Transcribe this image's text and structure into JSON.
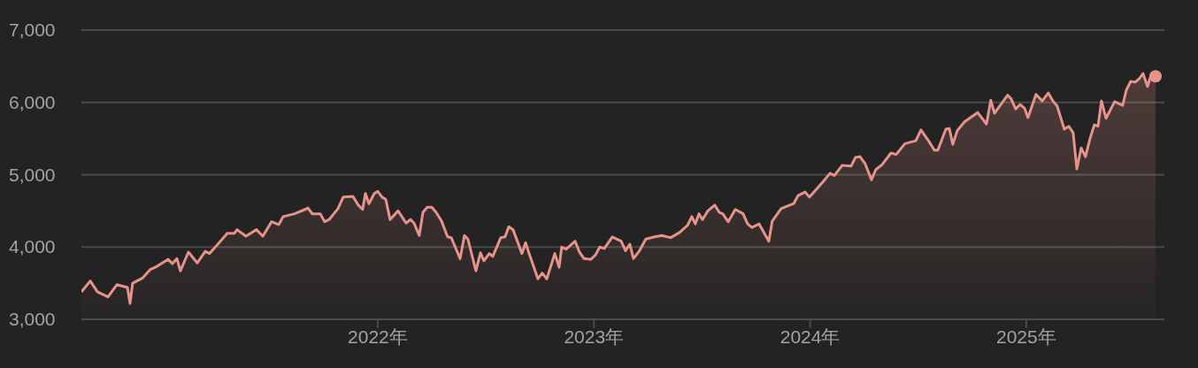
{
  "chart_data": {
    "type": "area",
    "x": [
      2020.629,
      2020.67,
      2020.703,
      2020.752,
      2020.793,
      2020.842,
      2020.854,
      2020.866,
      2020.911,
      2020.948,
      2020.977,
      2021.03,
      2021.05,
      2021.071,
      2021.087,
      2021.124,
      2021.165,
      2021.202,
      2021.222,
      2021.255,
      2021.304,
      2021.337,
      2021.349,
      2021.39,
      2021.439,
      2021.468,
      2021.509,
      2021.542,
      2021.562,
      2021.615,
      2021.664,
      2021.677,
      2021.697,
      2021.734,
      2021.754,
      2021.775,
      2021.816,
      2021.84,
      2021.885,
      2021.91,
      2021.93,
      2021.943,
      2021.959,
      2021.984,
      2022.0,
      2022.02,
      2022.037,
      2022.057,
      2022.094,
      2022.131,
      2022.151,
      2022.168,
      2022.192,
      2022.209,
      2022.229,
      2022.25,
      2022.27,
      2022.295,
      2022.323,
      2022.34,
      2022.381,
      2022.401,
      2022.417,
      2022.454,
      2022.475,
      2022.491,
      2022.516,
      2022.532,
      2022.569,
      2022.589,
      2022.606,
      2022.626,
      2022.667,
      2022.684,
      2022.7,
      2022.741,
      2022.761,
      2022.782,
      2022.819,
      2022.839,
      2022.851,
      2022.872,
      2022.913,
      2022.933,
      2022.954,
      2022.986,
      2023.007,
      2023.027,
      2023.048,
      2023.085,
      2023.126,
      2023.146,
      2023.166,
      2023.183,
      2023.211,
      2023.24,
      2023.281,
      2023.314,
      2023.355,
      2023.396,
      2023.433,
      2023.453,
      2023.469,
      2023.486,
      2023.502,
      2023.527,
      2023.559,
      2023.58,
      2023.596,
      2023.621,
      2023.654,
      2023.69,
      2023.711,
      2023.731,
      2023.764,
      2023.809,
      2023.825,
      2023.866,
      2023.924,
      2023.944,
      2023.977,
      2023.997,
      2024.059,
      2024.092,
      2024.112,
      2024.149,
      2024.19,
      2024.21,
      2024.231,
      2024.255,
      2024.284,
      2024.304,
      2024.333,
      2024.374,
      2024.398,
      2024.439,
      2024.489,
      2024.513,
      2024.55,
      2024.575,
      2024.591,
      2024.628,
      2024.644,
      2024.66,
      2024.681,
      2024.714,
      2024.775,
      2024.816,
      2024.836,
      2024.853,
      2024.877,
      2024.914,
      2024.93,
      2024.951,
      2024.972,
      2024.992,
      2025.008,
      2025.045,
      2025.074,
      2025.102,
      2025.123,
      2025.143,
      2025.176,
      2025.197,
      2025.217,
      2025.234,
      2025.254,
      2025.274,
      2025.295,
      2025.315,
      2025.332,
      2025.348,
      2025.369,
      2025.409,
      2025.446,
      2025.463,
      2025.483,
      2025.504,
      2025.524,
      2025.54,
      2025.561,
      2025.573,
      2025.598
    ],
    "series": [
      {
        "color": "#e8938a",
        "values": [
          3380,
          3530,
          3380,
          3310,
          3480,
          3440,
          3220,
          3500,
          3570,
          3690,
          3730,
          3830,
          3770,
          3840,
          3670,
          3930,
          3780,
          3940,
          3910,
          4020,
          4190,
          4190,
          4240,
          4150,
          4240,
          4150,
          4350,
          4310,
          4420,
          4460,
          4520,
          4540,
          4460,
          4460,
          4350,
          4380,
          4530,
          4690,
          4700,
          4580,
          4520,
          4740,
          4600,
          4740,
          4770,
          4690,
          4660,
          4380,
          4500,
          4330,
          4380,
          4330,
          4160,
          4480,
          4550,
          4550,
          4480,
          4360,
          4140,
          4130,
          3840,
          4160,
          4110,
          3670,
          3920,
          3810,
          3910,
          3870,
          4130,
          4140,
          4280,
          4240,
          3910,
          4060,
          3910,
          3560,
          3640,
          3560,
          3910,
          3720,
          4000,
          3970,
          4080,
          3930,
          3840,
          3830,
          3890,
          4000,
          3980,
          4140,
          4080,
          3950,
          4040,
          3840,
          3950,
          4110,
          4140,
          4160,
          4130,
          4200,
          4300,
          4420,
          4320,
          4460,
          4380,
          4500,
          4580,
          4480,
          4460,
          4350,
          4520,
          4460,
          4320,
          4270,
          4320,
          4080,
          4360,
          4530,
          4600,
          4710,
          4760,
          4690,
          4900,
          5020,
          4990,
          5130,
          5120,
          5240,
          5250,
          5150,
          4930,
          5070,
          5140,
          5300,
          5280,
          5430,
          5470,
          5620,
          5460,
          5340,
          5340,
          5630,
          5640,
          5420,
          5610,
          5730,
          5860,
          5700,
          6030,
          5850,
          5950,
          6100,
          6050,
          5910,
          5970,
          5920,
          5790,
          6110,
          6020,
          6130,
          6020,
          5950,
          5630,
          5670,
          5580,
          5080,
          5370,
          5250,
          5500,
          5690,
          5670,
          6020,
          5780,
          6010,
          5960,
          6170,
          6290,
          6280,
          6330,
          6400,
          6220,
          6340,
          6360
        ]
      }
    ],
    "xlim": [
      2020.629,
      2025.639
    ],
    "xticks": [
      {
        "value": 2022,
        "label": "2022年"
      },
      {
        "value": 2023,
        "label": "2023年"
      },
      {
        "value": 2024,
        "label": "2024年"
      },
      {
        "value": 2025,
        "label": "2025年"
      }
    ],
    "ylim": [
      3000,
      7000
    ],
    "yticks": [
      {
        "value": 3000,
        "label": "3,000"
      },
      {
        "value": 4000,
        "label": "4,000"
      },
      {
        "value": 5000,
        "label": "5,000"
      },
      {
        "value": 6000,
        "label": "6,000"
      },
      {
        "value": 7000,
        "label": "7,000"
      }
    ],
    "grid": "y",
    "marker": "none",
    "line_style": "solid"
  }
}
